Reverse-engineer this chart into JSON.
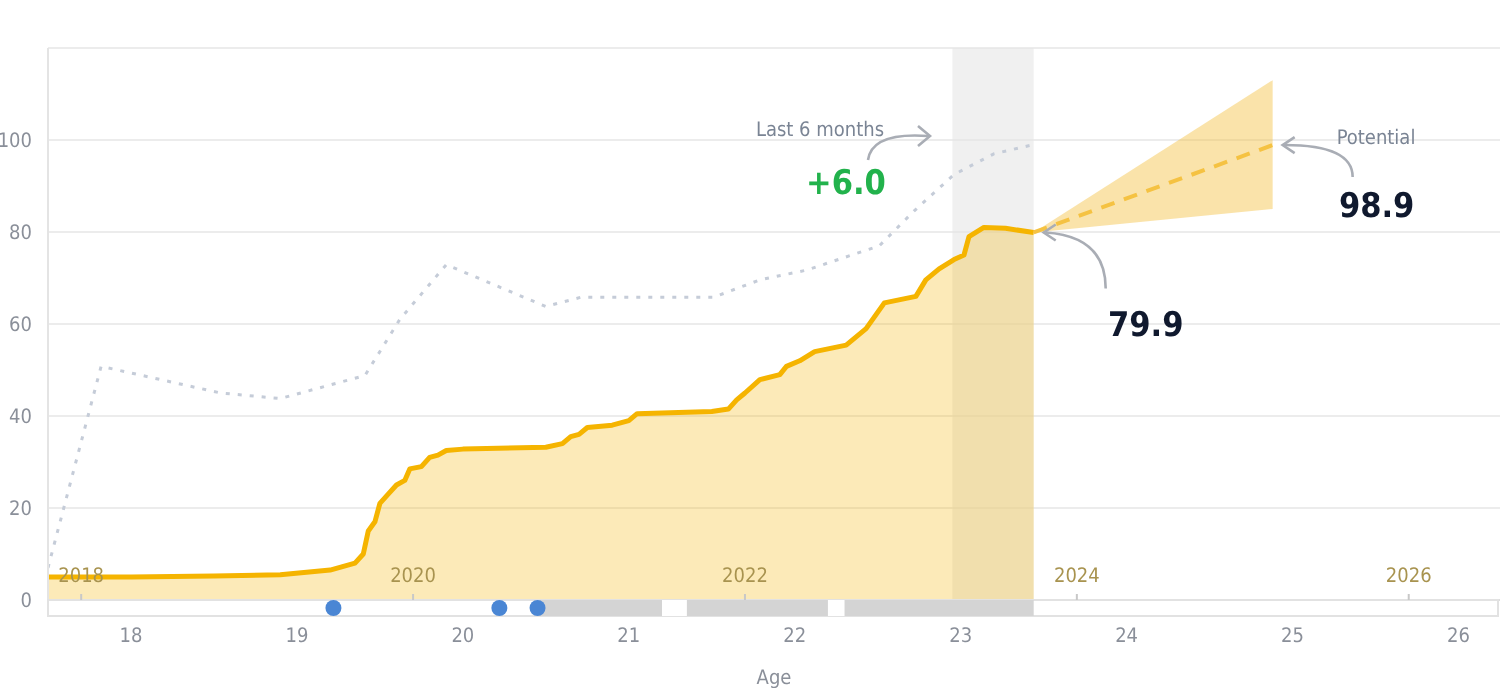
{
  "chart_data": {
    "type": "area",
    "xlabel": "Age",
    "xlim": [
      17.5,
      26.25
    ],
    "xticks": [
      18,
      19,
      20,
      21,
      22,
      23,
      24,
      25,
      26
    ],
    "x2lim": [
      2017.8,
      2026.55
    ],
    "x2ticks": [
      2018,
      2020,
      2022,
      2024,
      2026
    ],
    "ylim": [
      0,
      120
    ],
    "yticks": [
      0,
      20,
      40,
      60,
      80,
      100
    ],
    "grid": "y",
    "series": [
      {
        "type": "line",
        "color": "#c5ccd8",
        "line_style": "dotted",
        "x": [
          17.5,
          17.82,
          18.54,
          18.9,
          19.41,
          19.62,
          19.9,
          20.5,
          20.71,
          21.51,
          21.79,
          22.07,
          22.51,
          22.72,
          22.96,
          23.2,
          23.44
        ],
        "values": [
          7,
          50.8,
          45,
          43.8,
          48.8,
          61,
          72.9,
          63.8,
          65.8,
          65.8,
          69.6,
          71.7,
          77,
          84.6,
          92.5,
          97,
          99
        ]
      },
      {
        "color": "#f5b400",
        "line_style": "solid",
        "x": [
          17.5,
          18,
          18.5,
          18.9,
          19.2,
          19.35,
          19.4,
          19.43,
          19.47,
          19.5,
          19.55,
          19.6,
          19.65,
          19.68,
          19.75,
          19.8,
          19.85,
          19.9,
          20,
          20.5,
          20.6,
          20.65,
          20.7,
          20.75,
          20.9,
          21,
          21.05,
          21.5,
          21.6,
          21.65,
          21.7,
          21.79,
          21.91,
          21.95,
          22.03,
          22.12,
          22.31,
          22.43,
          22.54,
          22.73,
          22.79,
          22.87,
          22.96,
          23.02,
          23.05,
          23.14,
          23.27,
          23.44
        ],
        "values": [
          5,
          5,
          5.2,
          5.5,
          6.5,
          8,
          10,
          15,
          17,
          21,
          23,
          25,
          26,
          28.5,
          29,
          31,
          31.5,
          32.5,
          32.8,
          33.2,
          34,
          35.5,
          36,
          37.5,
          38,
          39,
          40.5,
          41,
          41.5,
          43.5,
          45,
          47.9,
          49,
          50.8,
          52,
          54,
          55.4,
          59,
          64.6,
          66,
          69.6,
          72,
          74,
          75,
          79,
          81,
          80.8,
          79.9
        ]
      },
      {
        "type": "line",
        "color": "#f5c242",
        "line_style": "dashed",
        "x": [
          23.44,
          24.88
        ],
        "values": [
          79.9,
          98.9
        ],
        "lower": [
          79.9,
          85
        ],
        "upper": [
          79.9,
          113
        ]
      }
    ],
    "bands": [
      {
        "axis": "x",
        "from": 22.95,
        "to": 23.44,
        "color": "#e6e6e6"
      }
    ],
    "annotations": [
      "Last 6 months",
      "+6.0",
      "Potential",
      {
        "text": "98.9",
        "x": 24.88,
        "y": 98.9
      },
      {
        "text": "79.9",
        "x": 23.44,
        "y": 79.9
      }
    ]
  }
}
